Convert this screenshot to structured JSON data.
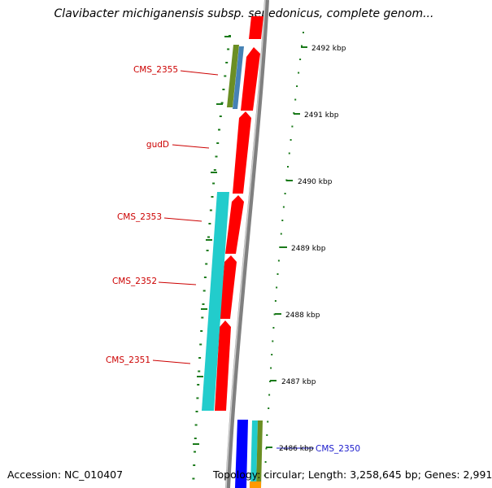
{
  "title": "Clavibacter michiganensis subsp. sepedonicus, complete genom...",
  "accession": "Accession: NC_010407",
  "topology": "Topology: circular; Length: 3,258,645 bp; Genes: 2,991",
  "ticks": [
    {
      "label": "2492 kbp"
    },
    {
      "label": "2491 kbp"
    },
    {
      "label": "2490 kbp"
    },
    {
      "label": "2489 kbp"
    },
    {
      "label": "2488 kbp"
    },
    {
      "label": "2487 kbp"
    },
    {
      "label": "2486 kbp"
    }
  ],
  "genes": [
    {
      "name": "CMS_2355"
    },
    {
      "name": "gudD"
    },
    {
      "name": "CMS_2353"
    },
    {
      "name": "CMS_2352"
    },
    {
      "name": "CMS_2351"
    },
    {
      "name": "CMS_2350"
    }
  ],
  "colors": {
    "cds_forward": "#ff0000",
    "backbone": "#808080",
    "tick": "#1a7a1a",
    "gene_label_red": "#cc0000",
    "gene_label_blue": "#1a1acc",
    "cyan_feature": "#22cccc",
    "olive_feature": "#6b8e23",
    "steel_feature": "#4682b4",
    "blue_feature": "#0000ff",
    "orange_feature": "#ff9900"
  }
}
